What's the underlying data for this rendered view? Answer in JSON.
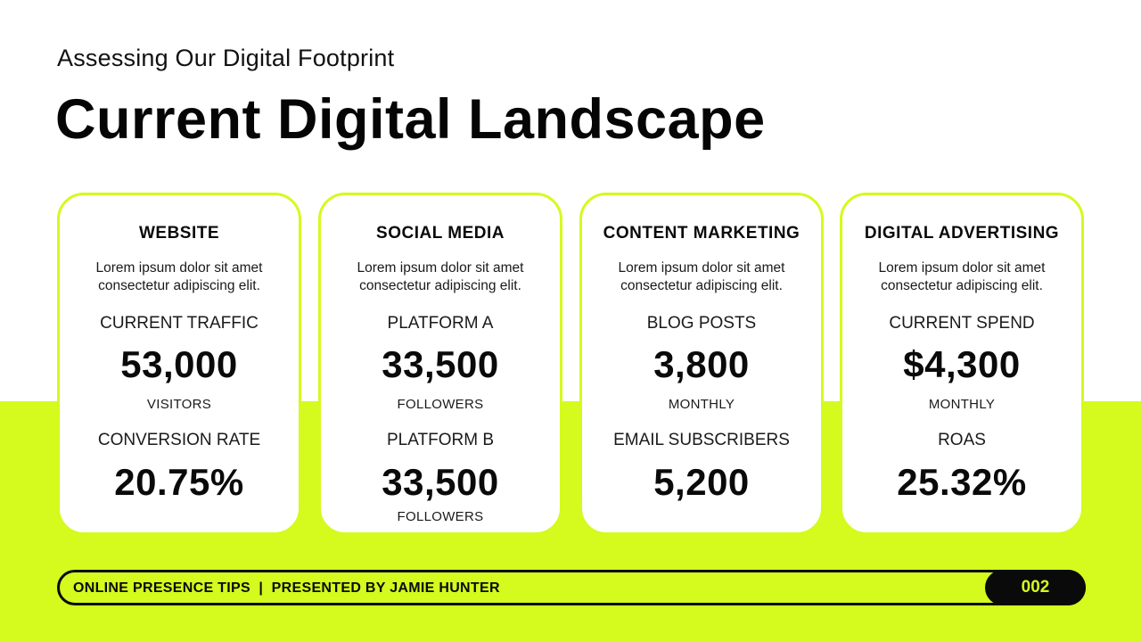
{
  "slide": {
    "subtitle": "Assessing Our Digital Footprint",
    "title": "Current Digital Landscape"
  },
  "colors": {
    "accent": "#d4fa1e",
    "text": "#0a0a0a",
    "card": "#ffffff"
  },
  "cards": [
    {
      "heading": "WEBSITE",
      "description": "Lorem ipsum dolor sit amet consectetur adipiscing elit.",
      "label1": "CURRENT TRAFFIC",
      "value1": "53,000",
      "unit1": "VISITORS",
      "label2": "CONVERSION RATE",
      "value2": "20.75%",
      "unit2": ""
    },
    {
      "heading": "SOCIAL MEDIA",
      "description": "Lorem ipsum dolor sit amet consectetur adipiscing elit.",
      "label1": "PLATFORM A",
      "value1": "33,500",
      "unit1": "FOLLOWERS",
      "label2": "PLATFORM B",
      "value2": "33,500",
      "unit2": "FOLLOWERS"
    },
    {
      "heading": "CONTENT MARKETING",
      "description": "Lorem ipsum dolor sit amet consectetur adipiscing elit.",
      "label1": "BLOG POSTS",
      "value1": "3,800",
      "unit1": "MONTHLY",
      "label2": "EMAIL SUBSCRIBERS",
      "value2": "5,200",
      "unit2": ""
    },
    {
      "heading": "DIGITAL ADVERTISING",
      "description": "Lorem ipsum dolor sit amet consectetur adipiscing elit.",
      "label1": "CURRENT SPEND",
      "value1": "$4,300",
      "unit1": "MONTHLY",
      "label2": "ROAS",
      "value2": "25.32%",
      "unit2": ""
    }
  ],
  "footer": {
    "text": "ONLINE PRESENCE TIPS  |  PRESENTED BY JAMIE HUNTER",
    "page_number": "002"
  }
}
